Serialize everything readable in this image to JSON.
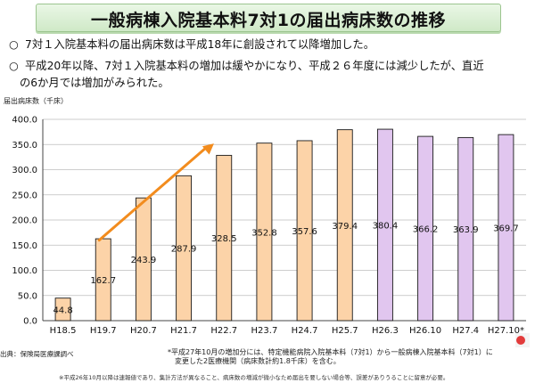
{
  "title": "一般病棟入院基本料7対1の届出病床数の推移",
  "bullets": [
    {
      "mark": "○",
      "text": "7対１入院基本料の届出病床数は平成18年に創設されて以降増加した。"
    },
    {
      "mark": "○",
      "text": "平成20年以降、7対１入院基本料の増加は緩やかになり、平成２６年度には減少したが、直近",
      "cont": "の6か月では増加がみられた。"
    }
  ],
  "chart_data": {
    "type": "bar",
    "ylabel": "届出病床数（千床）",
    "ylim": [
      0,
      400
    ],
    "yticks": [
      0,
      50,
      100,
      150,
      200,
      250,
      300,
      350,
      400
    ],
    "ytick_labels": [
      "0.0",
      "50.0",
      "100.0",
      "150.0",
      "200.0",
      "250.0",
      "300.0",
      "350.0",
      "400.0"
    ],
    "categories": [
      "H18.5",
      "H19.7",
      "H20.7",
      "H21.7",
      "H22.7",
      "H23.7",
      "H24.7",
      "H25.7",
      "H26.3",
      "H26.10",
      "H27.4",
      "H27.10*"
    ],
    "values": [
      44.8,
      162.7,
      243.9,
      287.9,
      328.5,
      352.8,
      357.6,
      379.4,
      380.4,
      366.2,
      363.9,
      369.7
    ],
    "labels": [
      "44.8",
      "162.7",
      "243.9",
      "287.9",
      "328.5",
      "352.8",
      "357.6",
      "379.4",
      "380.4",
      "366.2",
      "363.9",
      "369.7"
    ],
    "bar_groups": [
      "before",
      "before",
      "before",
      "before",
      "before",
      "before",
      "before",
      "before",
      "after",
      "after",
      "after",
      "after"
    ],
    "colors": {
      "before": "#fcd3a8",
      "after": "#e1c6ef",
      "border": "#1a1a1a",
      "arrow": "#f28c1e",
      "grid": "#bdbdbd"
    },
    "grid": true
  },
  "footer": {
    "source": "出典：保険局医療課調べ",
    "note_line1": "*平成27年10月の増加分には、特定機能病院入院基本料（7対1）から一般病棟入院基本料（7対1）に",
    "note_line2": "変更した2医療機関（病床数計約1.8千床）を含む。",
    "note_small": "※平成26年10月以降は速報値であり、集計方法が異なること、病床数の増減が微小なため届出を要しない場合等、誤差がありうることに留意が必要。"
  }
}
